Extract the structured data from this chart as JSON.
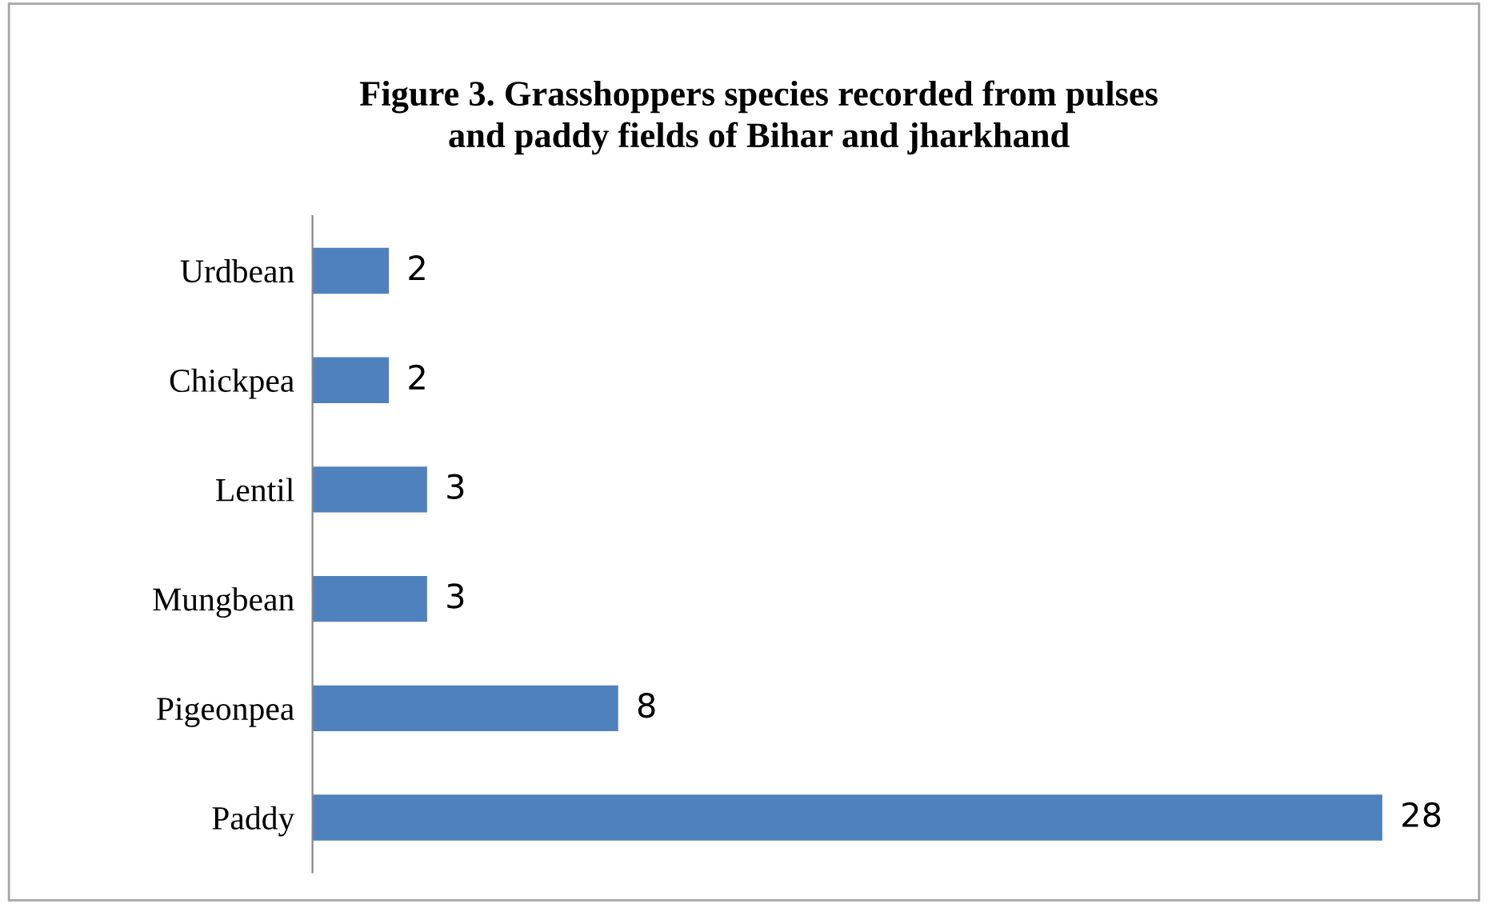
{
  "chart_data": {
    "type": "bar",
    "orientation": "horizontal",
    "title": "Figure 3. Grasshoppers species recorded from pulses\nand paddy fields of Bihar and jharkhand",
    "categories": [
      "Urdbean",
      "Chickpea",
      "Lentil",
      "Mungbean",
      "Pigeonpea",
      "Paddy"
    ],
    "values": [
      2,
      2,
      3,
      3,
      8,
      28
    ],
    "color": "#4f81bd",
    "data_labels": true,
    "grid": false,
    "legend": false
  }
}
